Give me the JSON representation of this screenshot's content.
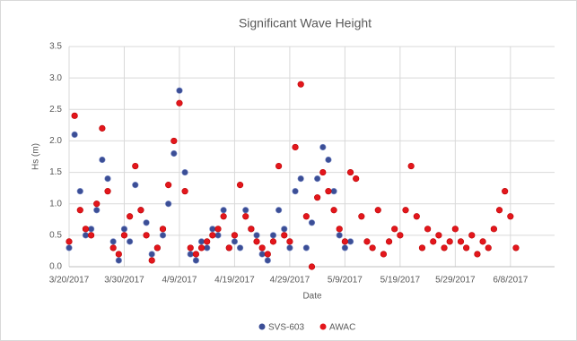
{
  "chart_data": {
    "type": "scatter",
    "title": "Significant Wave Height",
    "x_label": "Date",
    "y_label": "Hs (m)",
    "x": [
      "3/20/2017",
      "3/21/2017",
      "3/22/2017",
      "3/23/2017",
      "3/24/2017",
      "3/25/2017",
      "3/26/2017",
      "3/27/2017",
      "3/28/2017",
      "3/29/2017",
      "3/30/2017",
      "3/31/2017",
      "4/1/2017",
      "4/2/2017",
      "4/3/2017",
      "4/4/2017",
      "4/5/2017",
      "4/6/2017",
      "4/7/2017",
      "4/8/2017",
      "4/9/2017",
      "4/10/2017",
      "4/11/2017",
      "4/12/2017",
      "4/13/2017",
      "4/14/2017",
      "4/15/2017",
      "4/16/2017",
      "4/17/2017",
      "4/18/2017",
      "4/19/2017",
      "4/20/2017",
      "4/21/2017",
      "4/22/2017",
      "4/23/2017",
      "4/24/2017",
      "4/25/2017",
      "4/26/2017",
      "4/27/2017",
      "4/28/2017",
      "4/29/2017",
      "4/30/2017",
      "5/1/2017",
      "5/2/2017",
      "5/3/2017",
      "5/4/2017",
      "5/5/2017",
      "5/6/2017",
      "5/7/2017",
      "5/8/2017",
      "5/9/2017",
      "5/10/2017",
      "5/11/2017",
      "5/12/2017",
      "5/13/2017",
      "5/14/2017",
      "5/15/2017",
      "5/16/2017",
      "5/17/2017",
      "5/18/2017",
      "5/19/2017",
      "5/20/2017",
      "5/21/2017",
      "5/22/2017",
      "5/23/2017",
      "5/24/2017",
      "5/25/2017",
      "5/26/2017",
      "5/27/2017",
      "5/28/2017",
      "5/29/2017",
      "5/30/2017",
      "5/31/2017",
      "6/1/2017",
      "6/2/2017",
      "6/3/2017",
      "6/4/2017",
      "6/5/2017",
      "6/6/2017",
      "6/7/2017",
      "6/8/2017",
      "6/9/2017"
    ],
    "series": [
      {
        "name": "SVS-603",
        "color": "#3b4e96",
        "values": [
          0.3,
          2.1,
          1.2,
          0.5,
          0.6,
          0.9,
          1.7,
          1.4,
          0.4,
          0.1,
          0.6,
          0.4,
          1.3,
          0.9,
          0.7,
          0.2,
          0.3,
          0.5,
          1.0,
          1.8,
          2.8,
          1.5,
          0.2,
          0.1,
          0.4,
          0.3,
          0.6,
          0.5,
          0.9,
          0.3,
          0.4,
          0.3,
          0.9,
          0.6,
          0.5,
          0.2,
          0.1,
          0.5,
          0.9,
          0.6,
          0.3,
          1.2,
          1.4,
          0.3,
          0.7,
          1.4,
          1.9,
          1.7,
          1.2,
          0.5,
          0.3,
          0.4,
          null,
          null,
          null,
          null,
          null,
          null,
          null,
          null,
          null,
          null,
          null,
          null,
          null,
          null,
          null,
          null,
          null,
          null,
          null,
          null,
          null,
          null,
          null,
          null,
          null,
          null,
          null,
          null,
          null,
          null
        ]
      },
      {
        "name": "AWAC",
        "color": "#e3161c",
        "values": [
          0.4,
          2.4,
          0.9,
          0.6,
          0.5,
          1.0,
          2.2,
          1.2,
          0.3,
          0.2,
          0.5,
          0.8,
          1.6,
          0.9,
          0.5,
          0.1,
          0.3,
          0.6,
          1.3,
          2.0,
          2.6,
          1.2,
          0.3,
          0.2,
          0.3,
          0.4,
          0.5,
          0.6,
          0.8,
          0.3,
          0.5,
          1.3,
          0.8,
          0.6,
          0.4,
          0.3,
          0.2,
          0.4,
          1.6,
          0.5,
          0.4,
          1.9,
          2.9,
          0.8,
          0.0,
          1.1,
          1.5,
          1.2,
          0.9,
          0.6,
          0.4,
          1.5,
          1.4,
          0.8,
          0.4,
          0.3,
          0.9,
          0.2,
          0.4,
          0.6,
          0.5,
          0.9,
          1.6,
          0.8,
          0.3,
          0.6,
          0.4,
          0.5,
          0.3,
          0.4,
          0.6,
          0.4,
          0.3,
          0.5,
          0.2,
          0.4,
          0.3,
          0.6,
          0.9,
          1.2,
          0.8,
          0.3
        ]
      }
    ],
    "xlim": [
      "3/20/2017",
      "6/16/2017"
    ],
    "xticks": [
      "3/20/2017",
      "3/30/2017",
      "4/9/2017",
      "4/19/2017",
      "4/29/2017",
      "5/9/2017",
      "5/19/2017",
      "5/29/2017",
      "6/8/2017"
    ],
    "ylim": [
      0,
      3.5
    ],
    "yticks": [
      {
        "value": 0,
        "label": "0.0"
      },
      0.5,
      {
        "value": 1,
        "label": "1.0"
      },
      1.5,
      {
        "value": 2,
        "label": "2.0"
      },
      2.5,
      {
        "value": 3,
        "label": "3.0"
      },
      3.5
    ],
    "grid": true,
    "legend": "bottom"
  }
}
